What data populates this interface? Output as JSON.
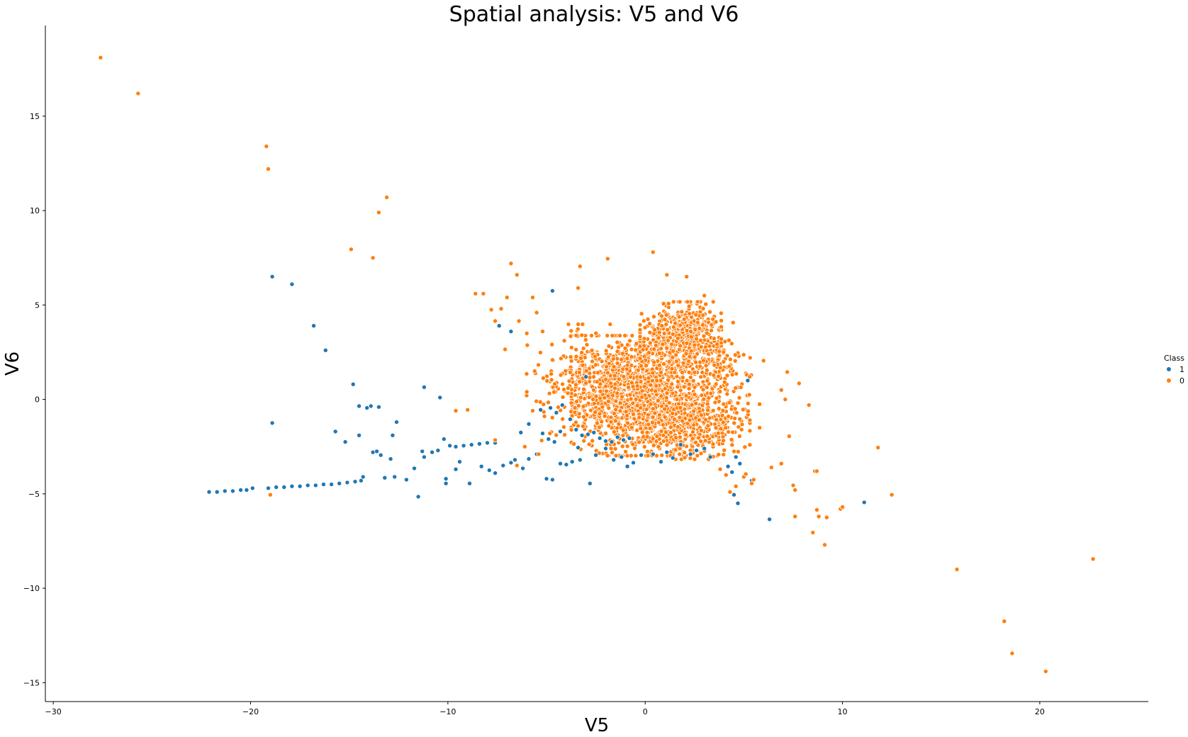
{
  "chart_data": {
    "type": "scatter",
    "title": "Spatial analysis: V5 and V6",
    "xlabel": "V5",
    "ylabel": "V6",
    "xlim": [
      -30.4,
      25.5
    ],
    "ylim": [
      -16.0,
      19.8
    ],
    "xticks": [
      -30,
      -20,
      -10,
      0,
      10,
      20
    ],
    "yticks": [
      -15,
      -10,
      -5,
      0,
      5,
      10,
      15
    ],
    "xtick_labels": [
      "−30",
      "−20",
      "−10",
      "0",
      "10",
      "20"
    ],
    "ytick_labels": [
      "−15",
      "−10",
      "−5",
      "0",
      "5",
      "10",
      "15"
    ],
    "grid": false,
    "legend": {
      "title": "Class",
      "placement": "right",
      "entries": [
        "1",
        "0"
      ]
    },
    "series": [
      {
        "name": "1",
        "color": "#1f77b4",
        "points": [
          [
            -22.1,
            -4.9
          ],
          [
            -21.7,
            -4.9
          ],
          [
            -21.3,
            -4.85
          ],
          [
            -20.9,
            -4.85
          ],
          [
            -20.5,
            -4.8
          ],
          [
            -20.2,
            -4.8
          ],
          [
            -19.9,
            -4.7
          ],
          [
            -19.1,
            -4.7
          ],
          [
            -18.7,
            -4.65
          ],
          [
            -18.3,
            -4.65
          ],
          [
            -17.9,
            -4.6
          ],
          [
            -17.5,
            -4.6
          ],
          [
            -17.1,
            -4.55
          ],
          [
            -16.7,
            -4.55
          ],
          [
            -16.3,
            -4.5
          ],
          [
            -15.9,
            -4.5
          ],
          [
            -15.5,
            -4.45
          ],
          [
            -15.1,
            -4.4
          ],
          [
            -14.7,
            -4.35
          ],
          [
            -14.4,
            -4.3
          ],
          [
            -14.3,
            -4.1
          ],
          [
            -13.2,
            -4.15
          ],
          [
            -12.7,
            -4.1
          ],
          [
            -12.1,
            -4.25
          ],
          [
            -11.5,
            -5.15
          ],
          [
            -18.9,
            6.5
          ],
          [
            -17.9,
            6.1
          ],
          [
            -16.8,
            3.9
          ],
          [
            -16.2,
            2.6
          ],
          [
            -14.8,
            0.8
          ],
          [
            -14.5,
            -0.35
          ],
          [
            -14.1,
            -0.45
          ],
          [
            -13.9,
            -0.35
          ],
          [
            -13.5,
            -0.4
          ],
          [
            -18.9,
            -1.25
          ],
          [
            -15.7,
            -1.7
          ],
          [
            -15.2,
            -2.25
          ],
          [
            -14.5,
            -1.9
          ],
          [
            -11.2,
            0.65
          ],
          [
            -10.4,
            0.1
          ],
          [
            -12.6,
            -1.2
          ],
          [
            -12.8,
            -1.9
          ],
          [
            -13.8,
            -2.8
          ],
          [
            -13.6,
            -2.75
          ],
          [
            -13.4,
            -2.95
          ],
          [
            -12.9,
            -3.15
          ],
          [
            -11.7,
            -3.65
          ],
          [
            -11.3,
            -2.75
          ],
          [
            -11.2,
            -3.05
          ],
          [
            -10.8,
            -2.8
          ],
          [
            -10.5,
            -2.7
          ],
          [
            -10.2,
            -2.1
          ],
          [
            -9.9,
            -2.45
          ],
          [
            -9.6,
            -2.5
          ],
          [
            -9.2,
            -2.45
          ],
          [
            -8.8,
            -2.4
          ],
          [
            -8.4,
            -2.35
          ],
          [
            -8.0,
            -2.3
          ],
          [
            -7.6,
            -2.3
          ],
          [
            -10.1,
            -4.2
          ],
          [
            -10.1,
            -4.45
          ],
          [
            -9.6,
            -3.7
          ],
          [
            -9.4,
            -3.3
          ],
          [
            -8.9,
            -4.45
          ],
          [
            -8.3,
            -3.55
          ],
          [
            -7.9,
            -3.75
          ],
          [
            -7.6,
            -3.9
          ],
          [
            -7.2,
            -3.5
          ],
          [
            -6.8,
            -3.35
          ],
          [
            -6.6,
            -3.2
          ],
          [
            -7.4,
            3.9
          ],
          [
            -6.8,
            3.6
          ],
          [
            -6.2,
            -3.65
          ],
          [
            -5.9,
            -3.15
          ],
          [
            -5.5,
            -2.9
          ],
          [
            -5.2,
            -1.8
          ],
          [
            -4.9,
            -2.1
          ],
          [
            -4.6,
            -2.25
          ],
          [
            -4.3,
            -1.7
          ],
          [
            -5.3,
            -0.55
          ],
          [
            -4.8,
            -0.45
          ],
          [
            -4.5,
            -0.7
          ],
          [
            -4.2,
            -0.3
          ],
          [
            -3.8,
            -1.05
          ],
          [
            -3.5,
            -1.6
          ],
          [
            -3.2,
            -1.9
          ],
          [
            -2.9,
            -1.85
          ],
          [
            -2.6,
            -1.75
          ],
          [
            -2.3,
            -2.05
          ],
          [
            -2.0,
            -2.2
          ],
          [
            -1.7,
            -2.25
          ],
          [
            -1.4,
            -2.0
          ],
          [
            -1.1,
            -2.15
          ],
          [
            -0.8,
            -2.05
          ],
          [
            -5.0,
            -4.2
          ],
          [
            -4.7,
            -4.25
          ],
          [
            -4.3,
            -3.4
          ],
          [
            -4.0,
            -3.45
          ],
          [
            -3.7,
            -3.3
          ],
          [
            -3.3,
            -3.2
          ],
          [
            -2.8,
            -4.45
          ],
          [
            -2.5,
            -2.95
          ],
          [
            -2.0,
            -2.6
          ],
          [
            -1.6,
            -3.2
          ],
          [
            -1.2,
            -3.05
          ],
          [
            -0.9,
            -3.55
          ],
          [
            -0.6,
            -3.35
          ],
          [
            -0.2,
            -2.95
          ],
          [
            0.4,
            -2.9
          ],
          [
            0.8,
            -3.3
          ],
          [
            1.1,
            -2.8
          ],
          [
            1.4,
            -3.1
          ],
          [
            1.8,
            -2.4
          ],
          [
            2.3,
            -2.9
          ],
          [
            2.6,
            -2.7
          ],
          [
            3.0,
            -2.6
          ],
          [
            3.3,
            -3.05
          ],
          [
            -5.9,
            -1.3
          ],
          [
            -6.3,
            -1.75
          ],
          [
            -4.7,
            5.75
          ],
          [
            -3.0,
            1.2
          ],
          [
            -3.4,
            -2.55
          ],
          [
            4.2,
            -3.55
          ],
          [
            4.4,
            -3.85
          ],
          [
            4.6,
            -3.05
          ],
          [
            4.8,
            -3.4
          ],
          [
            4.5,
            -5.05
          ],
          [
            4.7,
            -5.5
          ],
          [
            5.4,
            -4.3
          ],
          [
            6.3,
            -6.35
          ],
          [
            11.1,
            -5.45
          ],
          [
            5.2,
            1.0
          ]
        ]
      },
      {
        "name": "0",
        "color": "#ff7f0e",
        "points": [
          [
            -27.6,
            18.1
          ],
          [
            -25.7,
            16.2
          ],
          [
            -19.2,
            13.4
          ],
          [
            -19.1,
            12.2
          ],
          [
            -13.1,
            10.7
          ],
          [
            -13.5,
            9.9
          ],
          [
            -14.9,
            7.95
          ],
          [
            -13.8,
            7.5
          ],
          [
            -19.0,
            -5.05
          ],
          [
            -9.6,
            -0.6
          ],
          [
            -9.0,
            -0.55
          ],
          [
            -7.6,
            -2.15
          ],
          [
            -8.6,
            5.6
          ],
          [
            -8.2,
            5.6
          ],
          [
            -7.8,
            4.75
          ],
          [
            -7.6,
            4.15
          ],
          [
            -7.3,
            4.8
          ],
          [
            -7.0,
            5.4
          ],
          [
            -7.1,
            2.65
          ],
          [
            -6.8,
            7.2
          ],
          [
            -6.5,
            6.6
          ],
          [
            -6.4,
            4.15
          ],
          [
            -6.0,
            3.5
          ],
          [
            -5.7,
            5.4
          ],
          [
            -5.5,
            4.6
          ],
          [
            -5.2,
            3.6
          ],
          [
            -3.3,
            7.05
          ],
          [
            -3.4,
            5.9
          ],
          [
            -1.9,
            7.45
          ],
          [
            0.4,
            7.8
          ],
          [
            1.1,
            6.6
          ],
          [
            2.1,
            6.5
          ],
          [
            3.0,
            5.5
          ],
          [
            -6.5,
            -3.5
          ],
          [
            -6.1,
            -2.5
          ],
          [
            -5.7,
            -0.6
          ],
          [
            -5.6,
            1.5
          ],
          [
            -6.0,
            0.4
          ],
          [
            -5.4,
            -2.9
          ],
          [
            5.4,
            -4.45
          ],
          [
            5.5,
            -4.25
          ],
          [
            5.8,
            -1.5
          ],
          [
            5.8,
            -0.25
          ],
          [
            6.0,
            2.05
          ],
          [
            6.4,
            -3.6
          ],
          [
            6.9,
            -3.4
          ],
          [
            6.9,
            0.5
          ],
          [
            7.1,
            0.0
          ],
          [
            7.2,
            1.45
          ],
          [
            7.3,
            -1.95
          ],
          [
            7.5,
            -4.55
          ],
          [
            7.6,
            -4.8
          ],
          [
            7.6,
            -6.2
          ],
          [
            7.8,
            0.85
          ],
          [
            8.3,
            -0.3
          ],
          [
            8.5,
            -7.05
          ],
          [
            8.7,
            -5.85
          ],
          [
            8.8,
            -6.2
          ],
          [
            9.1,
            -7.7
          ],
          [
            9.2,
            -6.25
          ],
          [
            8.6,
            -3.8
          ],
          [
            8.7,
            -3.8
          ],
          [
            9.9,
            -5.8
          ],
          [
            10.0,
            -5.7
          ],
          [
            11.8,
            -2.55
          ],
          [
            12.5,
            -5.05
          ],
          [
            15.8,
            -9.0
          ],
          [
            18.2,
            -11.75
          ],
          [
            18.6,
            -13.45
          ],
          [
            20.3,
            -14.4
          ],
          [
            22.7,
            -8.45
          ],
          [
            4.3,
            -4.9
          ],
          [
            4.6,
            -4.6
          ],
          [
            5.0,
            -4.1
          ],
          [
            5.1,
            -3.95
          ],
          [
            4.1,
            -4.0
          ],
          [
            3.8,
            -3.7
          ],
          [
            5.3,
            1.2
          ]
        ]
      }
    ],
    "dense_clusters": [
      {
        "series": "0",
        "center": [
          0.0,
          0.2
        ],
        "spread": [
          2.0,
          1.7
        ],
        "count": 1600,
        "seed": 11
      },
      {
        "series": "0",
        "center": [
          1.8,
          3.3
        ],
        "spread": [
          1.1,
          1.0
        ],
        "count": 550,
        "seed": 23
      },
      {
        "series": "0",
        "center": [
          2.5,
          -1.3
        ],
        "spread": [
          1.5,
          1.0
        ],
        "count": 300,
        "seed": 37
      },
      {
        "series": "0",
        "center": [
          -3.2,
          0.8
        ],
        "spread": [
          1.5,
          1.7
        ],
        "count": 220,
        "seed": 41
      },
      {
        "series": "0",
        "center": [
          4.0,
          1.3
        ],
        "spread": [
          0.8,
          1.5
        ],
        "count": 120,
        "seed": 53
      }
    ]
  }
}
